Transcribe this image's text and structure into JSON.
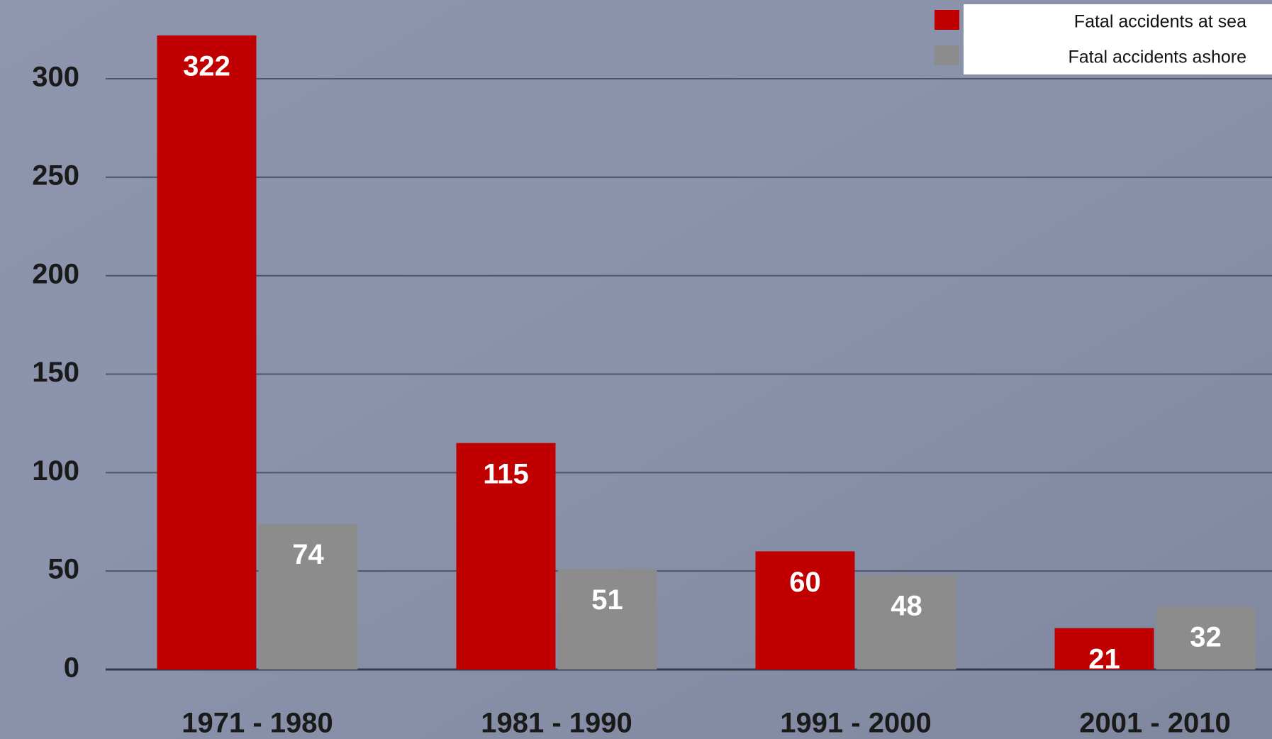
{
  "chart_data": {
    "type": "bar",
    "categories": [
      "1971 - 1980",
      "1981 - 1990",
      "1991 - 2000",
      "2001 - 2010"
    ],
    "series": [
      {
        "name": "Fatal accidents at sea",
        "color": "#c00000",
        "values": [
          322,
          115,
          60,
          21
        ]
      },
      {
        "name": "Fatal accidents ashore",
        "color": "#8c8c8c",
        "values": [
          74,
          51,
          48,
          32
        ]
      }
    ],
    "ylim": [
      0,
      340
    ],
    "yticks": [
      0,
      50,
      100,
      150,
      200,
      250,
      300
    ],
    "grid": true,
    "legend": "top-right"
  }
}
